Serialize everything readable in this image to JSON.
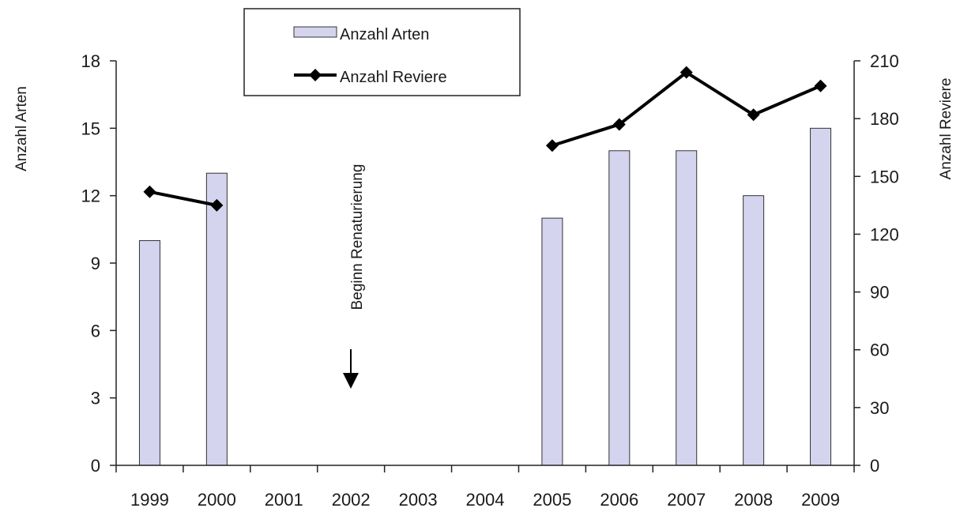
{
  "chart_data": {
    "type": "bar",
    "categories": [
      "1999",
      "2000",
      "2001",
      "2002",
      "2003",
      "2004",
      "2005",
      "2006",
      "2007",
      "2008",
      "2009"
    ],
    "series": [
      {
        "name": "Anzahl Arten",
        "type": "bar",
        "axis": "left",
        "values": [
          10,
          13,
          null,
          null,
          null,
          null,
          11,
          14,
          14,
          12,
          15
        ]
      },
      {
        "name": "Anzahl Reviere",
        "type": "line",
        "axis": "right",
        "marker": "diamond",
        "values": [
          142,
          135,
          null,
          null,
          null,
          null,
          166,
          177,
          204,
          182,
          197
        ]
      }
    ],
    "ylabel": "Anzahl Arten",
    "y2label": "Anzahl Reviere",
    "ylim": [
      0,
      18
    ],
    "yticks": [
      "0",
      "3",
      "6",
      "9",
      "12",
      "15",
      "18"
    ],
    "y2lim": [
      0,
      210
    ],
    "y2ticks": [
      "0",
      "30",
      "60",
      "90",
      "120",
      "150",
      "180",
      "210"
    ],
    "grid": false,
    "legend_position": "top",
    "annotation": {
      "text": "Beginn Renaturierung",
      "at_category": "2002"
    },
    "colors": {
      "bar_fill": "#d4d4ef",
      "bar_stroke": "#333333",
      "line": "#000000",
      "axis": "#222222"
    }
  }
}
